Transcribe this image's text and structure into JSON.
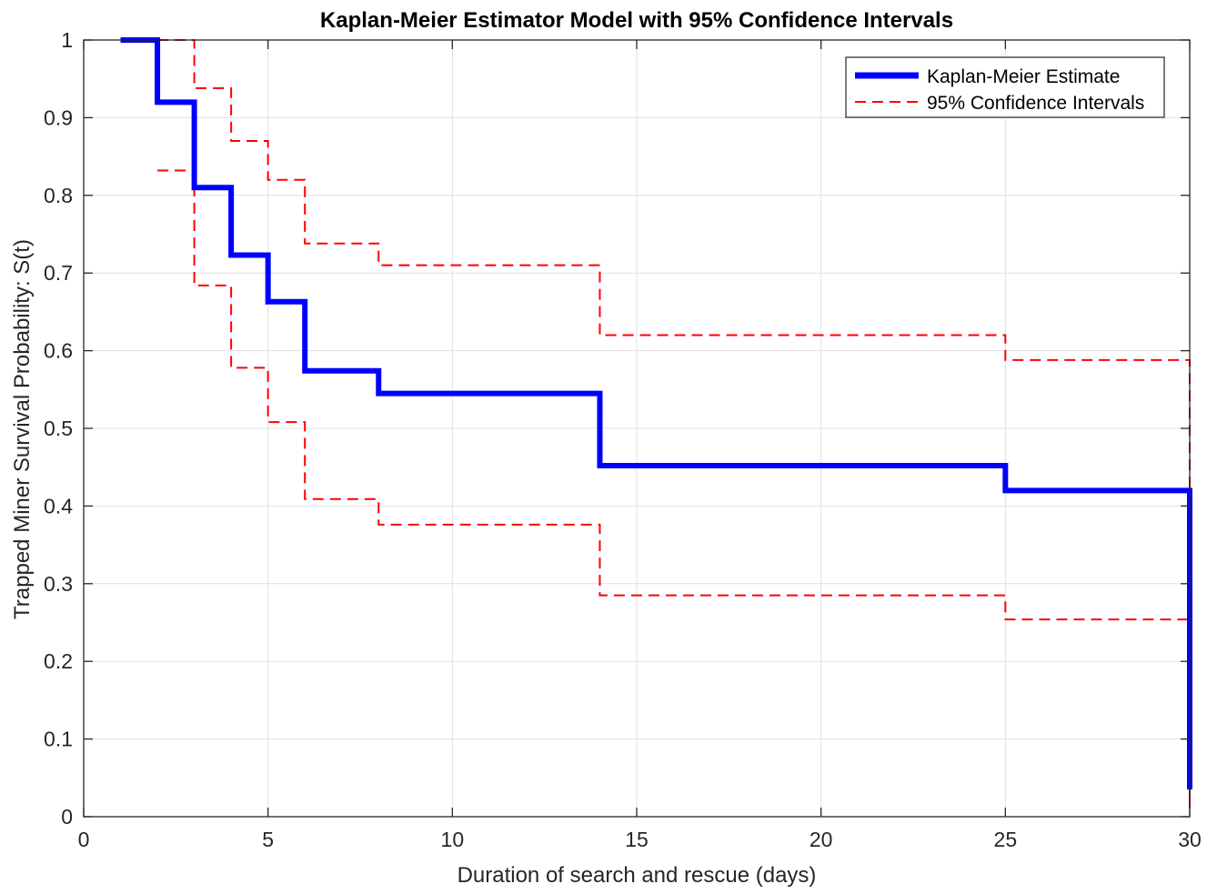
{
  "chart_data": {
    "type": "line",
    "title": "Kaplan-Meier Estimator Model with 95% Confidence Intervals",
    "xlabel": "Duration of search and rescue (days)",
    "ylabel": "Trapped Miner Survival Probability: S(t)",
    "xlim": [
      0,
      30
    ],
    "ylim": [
      0,
      1
    ],
    "xticks": [
      "0",
      "5",
      "10",
      "15",
      "20",
      "25",
      "30"
    ],
    "yticks": [
      "0",
      "0.1",
      "0.2",
      "0.3",
      "0.4",
      "0.5",
      "0.6",
      "0.7",
      "0.8",
      "0.9",
      "1"
    ],
    "grid": true,
    "legend_position": "top-right",
    "legend": {
      "km_label": "Kaplan-Meier Estimate",
      "ci_label": "95% Confidence Intervals"
    },
    "colors": {
      "km": "#0000ff",
      "ci": "#ff0000",
      "grid": "#e0e0e0",
      "axis": "#262626"
    },
    "series": [
      {
        "role": "estimate",
        "style": "solid",
        "step": true,
        "points": [
          [
            1,
            1
          ],
          [
            2,
            0.92
          ],
          [
            3,
            0.81
          ],
          [
            4,
            0.723
          ],
          [
            5,
            0.663
          ],
          [
            6,
            0.574
          ],
          [
            8,
            0.545
          ],
          [
            14,
            0.452
          ],
          [
            25,
            0.42
          ],
          [
            30,
            0.035
          ]
        ]
      },
      {
        "role": "upper_ci",
        "style": "dashed",
        "step": true,
        "points": [
          [
            2,
            1
          ],
          [
            3,
            0.938
          ],
          [
            4,
            0.87
          ],
          [
            5,
            0.82
          ],
          [
            6,
            0.738
          ],
          [
            8,
            0.71
          ],
          [
            14,
            0.62
          ],
          [
            25,
            0.588
          ],
          [
            30,
            0.02
          ]
        ]
      },
      {
        "role": "lower_ci",
        "style": "dashed",
        "step": true,
        "points": [
          [
            2,
            0.832
          ],
          [
            3,
            0.684
          ],
          [
            4,
            0.578
          ],
          [
            5,
            0.508
          ],
          [
            6,
            0.409
          ],
          [
            8,
            0.376
          ],
          [
            14,
            0.285
          ],
          [
            25,
            0.254
          ],
          [
            30,
            0.01
          ]
        ]
      }
    ]
  }
}
